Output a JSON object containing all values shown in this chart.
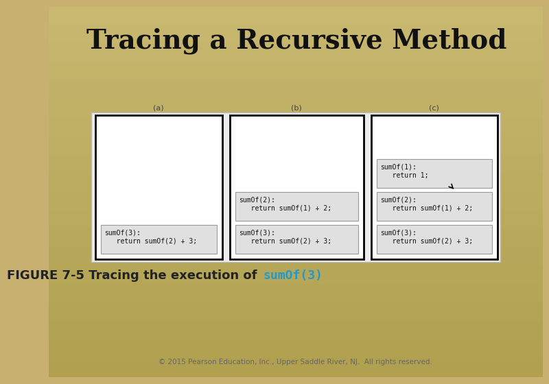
{
  "title": "Tracing a Recursive Method",
  "title_fontsize": 28,
  "title_font": "DejaVu Serif",
  "title_weight": "bold",
  "bg_color_top": "#c8b87a",
  "bg_color": "#c8b070",
  "caption_normal": "FIGURE 7-5 Tracing the execution of ",
  "caption_code": "sumOf(3)",
  "caption_fontsize": 13,
  "caption_code_color": "#2299cc",
  "copyright": "© 2015 Pearson Education, Inc., Upper Saddle River, NJ.  All rights reserved.",
  "copyright_fontsize": 7.5,
  "code_font": "monospace",
  "code_fontsize": 7,
  "label_fontsize": 8,
  "label_a": "(a)",
  "label_b": "(b)",
  "label_c": "(c)",
  "box_a": [
    "sumOf(3):",
    "   return sumOf(2) + 3;"
  ],
  "box_b_top": [
    "sumOf(2):",
    "   return sumOf(1) + 2;"
  ],
  "box_b_bot": [
    "sumOf(3):",
    "   return sumOf(2) + 3;"
  ],
  "box_c_top": [
    "sumOf(1):",
    "   return 1;"
  ],
  "box_c_mid": [
    "sumOf(2):",
    "   return sumOf(1) + 2;"
  ],
  "box_c_bot": [
    "sumOf(3):",
    "   return sumOf(2) + 3;"
  ]
}
